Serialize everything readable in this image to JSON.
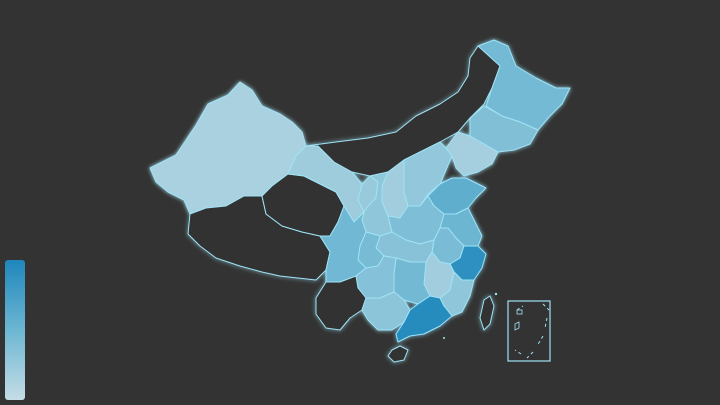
{
  "map": {
    "background": "#333333",
    "border_color": "#9fe3f5",
    "no_data_color": "#333333",
    "regions": [
      {
        "id": "xinjiang",
        "level": 0.15
      },
      {
        "id": "xizang",
        "level": null
      },
      {
        "id": "qinghai",
        "level": null
      },
      {
        "id": "gansu",
        "level": 0.22
      },
      {
        "id": "neimenggu",
        "level": null
      },
      {
        "id": "heilongjiang",
        "level": 0.45
      },
      {
        "id": "jilin",
        "level": 0.38
      },
      {
        "id": "liaoning",
        "level": 0.18
      },
      {
        "id": "hebei",
        "level": 0.28
      },
      {
        "id": "shanxi",
        "level": 0.2
      },
      {
        "id": "shaanxi",
        "level": 0.3
      },
      {
        "id": "ningxia",
        "level": 0.25
      },
      {
        "id": "shandong",
        "level": 0.58
      },
      {
        "id": "henan",
        "level": 0.4
      },
      {
        "id": "jiangsu",
        "level": 0.5
      },
      {
        "id": "anhui",
        "level": 0.42
      },
      {
        "id": "hubei",
        "level": 0.35
      },
      {
        "id": "sichuan",
        "level": 0.48
      },
      {
        "id": "chongqing",
        "level": 0.44
      },
      {
        "id": "zhejiang",
        "level": 0.9
      },
      {
        "id": "hunan",
        "level": 0.46
      },
      {
        "id": "jiangxi",
        "level": 0.2
      },
      {
        "id": "fujian",
        "level": 0.3
      },
      {
        "id": "guizhou",
        "level": 0.36
      },
      {
        "id": "yunnan",
        "level": null
      },
      {
        "id": "guangxi",
        "level": 0.32
      },
      {
        "id": "guangdong",
        "level": 0.95
      },
      {
        "id": "hainan",
        "level": null
      },
      {
        "id": "taiwan",
        "level": null
      }
    ]
  },
  "visual_map": {
    "min_color": "#c5dde6",
    "mid_color": "#6cb6d2",
    "max_color": "#1f86bb"
  }
}
